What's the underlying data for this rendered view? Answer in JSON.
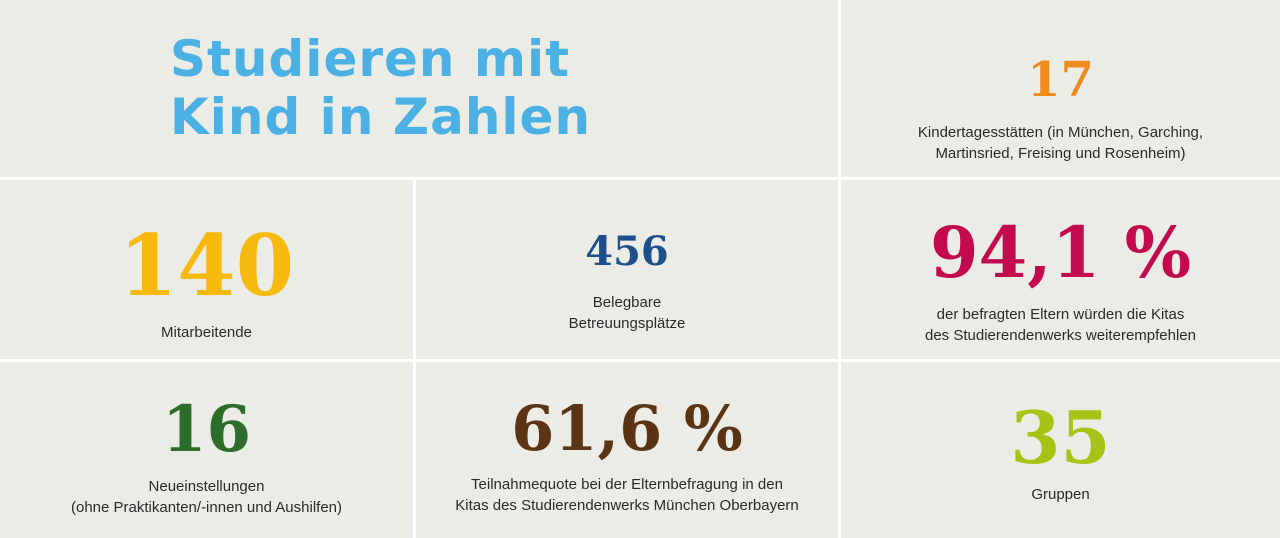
{
  "title": "Studieren mit\nKind in Zahlen",
  "colors": {
    "title": "#4bb0e4",
    "orange": "#ef8a1f",
    "yellow": "#f7b90e",
    "navy": "#1c4f8c",
    "crimson": "#c40a4e",
    "green": "#2d6d2a",
    "brown": "#5a3414",
    "lime": "#a6c417"
  },
  "stats": {
    "kitas": {
      "value": "17",
      "label": "Kindertagesstätten (in München, Garching,\nMartinsried, Freising und Rosenheim)"
    },
    "staff": {
      "value": "140",
      "label": "Mitarbeitende"
    },
    "places": {
      "value": "456",
      "label": "Belegbare\nBetreuungsplätze"
    },
    "recommend": {
      "value": "94,1 %",
      "label": "der befragten Eltern würden die Kitas\ndes Studierendenwerks weiterempfehlen"
    },
    "hires": {
      "value": "16",
      "label": "Neueinstellungen\n(ohne Praktikanten/-innen und Aushilfen)"
    },
    "participation": {
      "value": "61,6 %",
      "label": "Teilnahmequote bei der Elternbefragung in den\nKitas des Studierendenwerks München Oberbayern"
    },
    "groups": {
      "value": "35",
      "label": "Gruppen"
    }
  }
}
